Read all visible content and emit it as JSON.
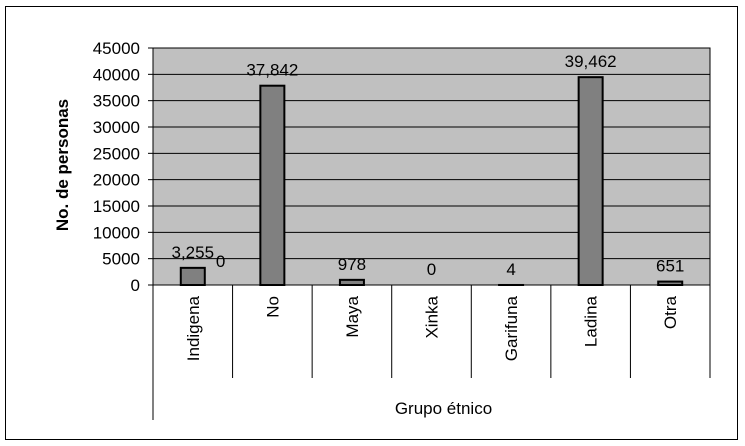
{
  "chart_data": {
    "type": "bar",
    "title": "",
    "xlabel": "Grupo étnico",
    "ylabel": "No. de personas",
    "ylim": [
      0,
      45000
    ],
    "ytick_step": 5000,
    "yticks": [
      "0",
      "5000",
      "10000",
      "15000",
      "20000",
      "25000",
      "30000",
      "35000",
      "40000",
      "45000"
    ],
    "categories": [
      "Indigena",
      "No",
      "Maya",
      "Xinka",
      "Garifuna",
      "Ladina",
      "Otra"
    ],
    "values": [
      3255,
      37842,
      978,
      0,
      4,
      39462,
      651
    ],
    "data_labels": [
      "3,255",
      "37,842",
      "978",
      "0",
      "4",
      "39,462",
      "651"
    ],
    "extra_labels": [
      {
        "text": "0",
        "category_index": 1,
        "value": 0
      }
    ],
    "grid": true,
    "colors": {
      "plot_background": "#c0c0c0",
      "bar_fill": "#808080",
      "bar_stroke": "#000000",
      "gridline": "#000000",
      "text": "#000000",
      "frame": "#000000"
    }
  }
}
